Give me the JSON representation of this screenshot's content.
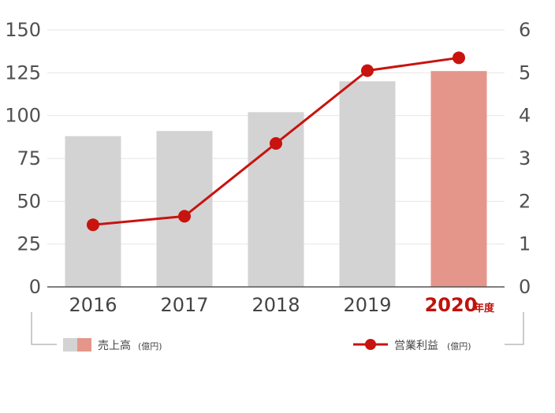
{
  "chart_data": {
    "type": "bar+line",
    "categories": [
      "2016",
      "2017",
      "2018",
      "2019",
      "2020"
    ],
    "x_suffix": "年度",
    "highlight_category_index": 4,
    "series": [
      {
        "name": "売上高",
        "unit": "(億円)",
        "type": "bar",
        "axis": "left",
        "values": [
          88,
          91,
          102,
          120,
          126
        ],
        "colors": [
          "#d3d3d3",
          "#d3d3d3",
          "#d3d3d3",
          "#d3d3d3",
          "#e5968b"
        ]
      },
      {
        "name": "営業利益",
        "unit": "(億円)",
        "type": "line",
        "axis": "right",
        "values": [
          1.45,
          1.65,
          3.35,
          5.05,
          5.35
        ],
        "color": "#c8130f"
      }
    ],
    "y_left": {
      "ylim": [
        0,
        150
      ],
      "ticks": [
        "0",
        "25",
        "50",
        "75",
        "100",
        "125",
        "150"
      ]
    },
    "y_right": {
      "ylim": [
        0,
        6
      ],
      "ticks": [
        "0",
        "1",
        "2",
        "3",
        "4",
        "5",
        "6"
      ]
    },
    "grid": true,
    "legend": "bottom",
    "colors": {
      "bar": "#d3d3d3",
      "bar_highlight": "#e5968b",
      "line": "#c8130f",
      "highlight_text": "#c0120c",
      "grid": "#e6e6e6"
    }
  }
}
